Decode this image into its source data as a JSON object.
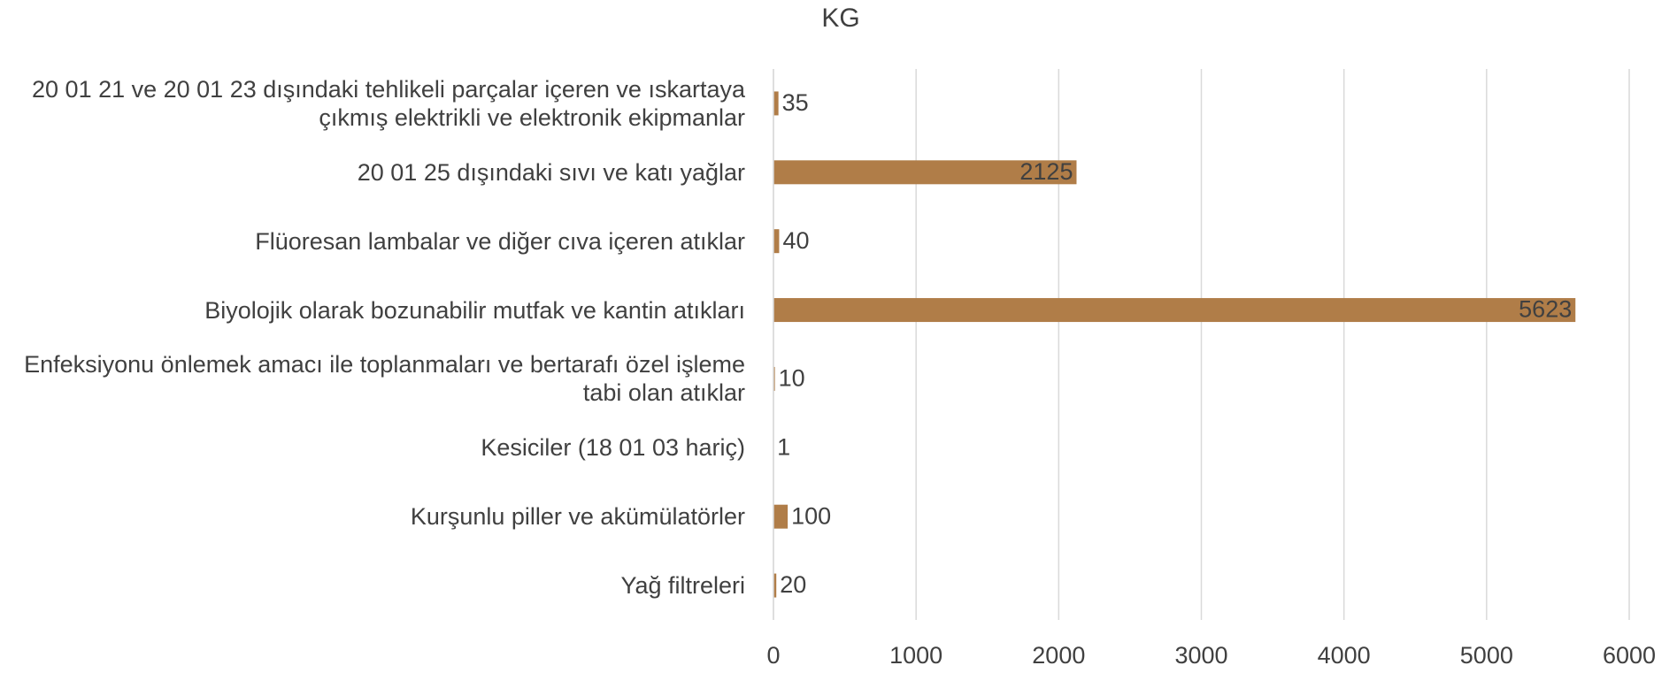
{
  "chart_data": {
    "type": "bar",
    "orientation": "horizontal",
    "title": "KG",
    "categories": [
      "20 01 21 ve 20 01 23 dışındaki tehlikeli parçalar içeren ve ıskartaya çıkmış elektrikli ve elektronik ekipmanlar",
      "20 01 25 dışındaki sıvı ve katı yağlar",
      "Flüoresan lambalar ve diğer cıva içeren atıklar",
      "Biyolojik olarak bozunabilir mutfak ve kantin atıkları",
      "Enfeksiyonu önlemek amacı ile toplanmaları ve bertarafı özel işleme tabi olan atıklar",
      "Kesiciler (18 01 03 hariç)",
      "Kurşunlu piller ve akümülatörler",
      "Yağ filtreleri"
    ],
    "values": [
      35,
      2125,
      40,
      5623,
      10,
      1,
      100,
      20
    ],
    "color": "#b07d48",
    "xlim": [
      0,
      6000
    ],
    "xticks": [
      0,
      1000,
      2000,
      3000,
      4000,
      5000,
      6000
    ],
    "grid": true
  }
}
